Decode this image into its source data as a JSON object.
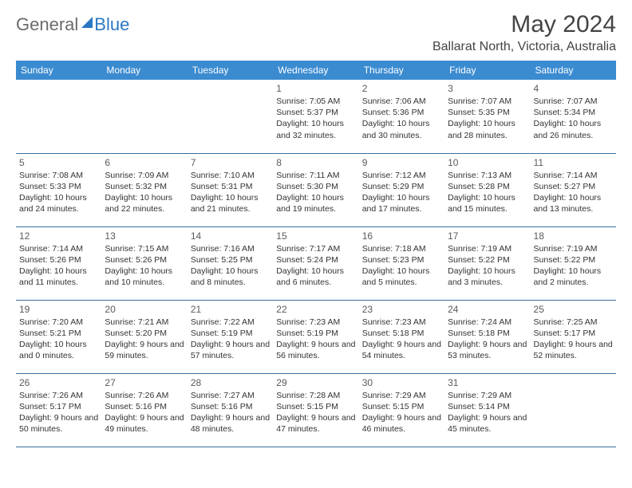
{
  "logo": {
    "part1": "General",
    "part2": "Blue"
  },
  "title": "May 2024",
  "location": "Ballarat North, Victoria, Australia",
  "colors": {
    "header_bg": "#3b8bd0",
    "header_text": "#ffffff",
    "border": "#3b6fa0",
    "title_color": "#444444",
    "body_text": "#333333",
    "logo_gray": "#6b6b6b",
    "logo_blue": "#2b78c2"
  },
  "dayHeaders": [
    "Sunday",
    "Monday",
    "Tuesday",
    "Wednesday",
    "Thursday",
    "Friday",
    "Saturday"
  ],
  "weeks": [
    [
      null,
      null,
      null,
      {
        "n": "1",
        "sr": "7:05 AM",
        "ss": "5:37 PM",
        "dl": "10 hours and 32 minutes."
      },
      {
        "n": "2",
        "sr": "7:06 AM",
        "ss": "5:36 PM",
        "dl": "10 hours and 30 minutes."
      },
      {
        "n": "3",
        "sr": "7:07 AM",
        "ss": "5:35 PM",
        "dl": "10 hours and 28 minutes."
      },
      {
        "n": "4",
        "sr": "7:07 AM",
        "ss": "5:34 PM",
        "dl": "10 hours and 26 minutes."
      }
    ],
    [
      {
        "n": "5",
        "sr": "7:08 AM",
        "ss": "5:33 PM",
        "dl": "10 hours and 24 minutes."
      },
      {
        "n": "6",
        "sr": "7:09 AM",
        "ss": "5:32 PM",
        "dl": "10 hours and 22 minutes."
      },
      {
        "n": "7",
        "sr": "7:10 AM",
        "ss": "5:31 PM",
        "dl": "10 hours and 21 minutes."
      },
      {
        "n": "8",
        "sr": "7:11 AM",
        "ss": "5:30 PM",
        "dl": "10 hours and 19 minutes."
      },
      {
        "n": "9",
        "sr": "7:12 AM",
        "ss": "5:29 PM",
        "dl": "10 hours and 17 minutes."
      },
      {
        "n": "10",
        "sr": "7:13 AM",
        "ss": "5:28 PM",
        "dl": "10 hours and 15 minutes."
      },
      {
        "n": "11",
        "sr": "7:14 AM",
        "ss": "5:27 PM",
        "dl": "10 hours and 13 minutes."
      }
    ],
    [
      {
        "n": "12",
        "sr": "7:14 AM",
        "ss": "5:26 PM",
        "dl": "10 hours and 11 minutes."
      },
      {
        "n": "13",
        "sr": "7:15 AM",
        "ss": "5:26 PM",
        "dl": "10 hours and 10 minutes."
      },
      {
        "n": "14",
        "sr": "7:16 AM",
        "ss": "5:25 PM",
        "dl": "10 hours and 8 minutes."
      },
      {
        "n": "15",
        "sr": "7:17 AM",
        "ss": "5:24 PM",
        "dl": "10 hours and 6 minutes."
      },
      {
        "n": "16",
        "sr": "7:18 AM",
        "ss": "5:23 PM",
        "dl": "10 hours and 5 minutes."
      },
      {
        "n": "17",
        "sr": "7:19 AM",
        "ss": "5:22 PM",
        "dl": "10 hours and 3 minutes."
      },
      {
        "n": "18",
        "sr": "7:19 AM",
        "ss": "5:22 PM",
        "dl": "10 hours and 2 minutes."
      }
    ],
    [
      {
        "n": "19",
        "sr": "7:20 AM",
        "ss": "5:21 PM",
        "dl": "10 hours and 0 minutes."
      },
      {
        "n": "20",
        "sr": "7:21 AM",
        "ss": "5:20 PM",
        "dl": "9 hours and 59 minutes."
      },
      {
        "n": "21",
        "sr": "7:22 AM",
        "ss": "5:19 PM",
        "dl": "9 hours and 57 minutes."
      },
      {
        "n": "22",
        "sr": "7:23 AM",
        "ss": "5:19 PM",
        "dl": "9 hours and 56 minutes."
      },
      {
        "n": "23",
        "sr": "7:23 AM",
        "ss": "5:18 PM",
        "dl": "9 hours and 54 minutes."
      },
      {
        "n": "24",
        "sr": "7:24 AM",
        "ss": "5:18 PM",
        "dl": "9 hours and 53 minutes."
      },
      {
        "n": "25",
        "sr": "7:25 AM",
        "ss": "5:17 PM",
        "dl": "9 hours and 52 minutes."
      }
    ],
    [
      {
        "n": "26",
        "sr": "7:26 AM",
        "ss": "5:17 PM",
        "dl": "9 hours and 50 minutes."
      },
      {
        "n": "27",
        "sr": "7:26 AM",
        "ss": "5:16 PM",
        "dl": "9 hours and 49 minutes."
      },
      {
        "n": "28",
        "sr": "7:27 AM",
        "ss": "5:16 PM",
        "dl": "9 hours and 48 minutes."
      },
      {
        "n": "29",
        "sr": "7:28 AM",
        "ss": "5:15 PM",
        "dl": "9 hours and 47 minutes."
      },
      {
        "n": "30",
        "sr": "7:29 AM",
        "ss": "5:15 PM",
        "dl": "9 hours and 46 minutes."
      },
      {
        "n": "31",
        "sr": "7:29 AM",
        "ss": "5:14 PM",
        "dl": "9 hours and 45 minutes."
      },
      null
    ]
  ],
  "labels": {
    "sunrise": "Sunrise: ",
    "sunset": "Sunset: ",
    "daylight": "Daylight: "
  }
}
